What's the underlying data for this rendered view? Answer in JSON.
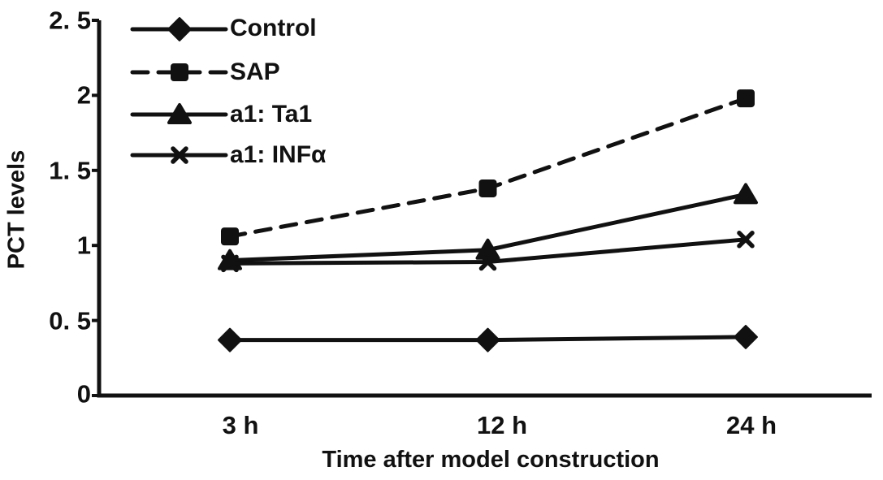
{
  "figure": {
    "background": "#ffffff",
    "ink_color": "#111111"
  },
  "chart_data": {
    "type": "line",
    "title": "",
    "xlabel": "Time after model construction",
    "ylabel": "PCT levels",
    "categories": [
      "3 h",
      "12 h",
      "24 h"
    ],
    "ylim": [
      0,
      2.5
    ],
    "ytick_values": [
      0,
      0.5,
      1,
      1.5,
      2,
      2.5
    ],
    "ytick_labels": [
      "0",
      "0. 5",
      "1",
      "1. 5",
      "2",
      "2. 5"
    ],
    "grid": false,
    "legend_position": "top-left-inside",
    "series": [
      {
        "name": "Control",
        "marker": "diamond",
        "line_style": "solid",
        "values": [
          0.37,
          0.37,
          0.39
        ]
      },
      {
        "name": "SAP",
        "marker": "square",
        "line_style": "dashed",
        "values": [
          1.06,
          1.38,
          1.98
        ]
      },
      {
        "name": "a1: Ta1",
        "marker": "triangle",
        "line_style": "solid",
        "values": [
          0.9,
          0.97,
          1.34
        ]
      },
      {
        "name": "a1: INFα",
        "marker": "x",
        "line_style": "solid",
        "values": [
          0.88,
          0.89,
          1.04
        ]
      }
    ]
  }
}
